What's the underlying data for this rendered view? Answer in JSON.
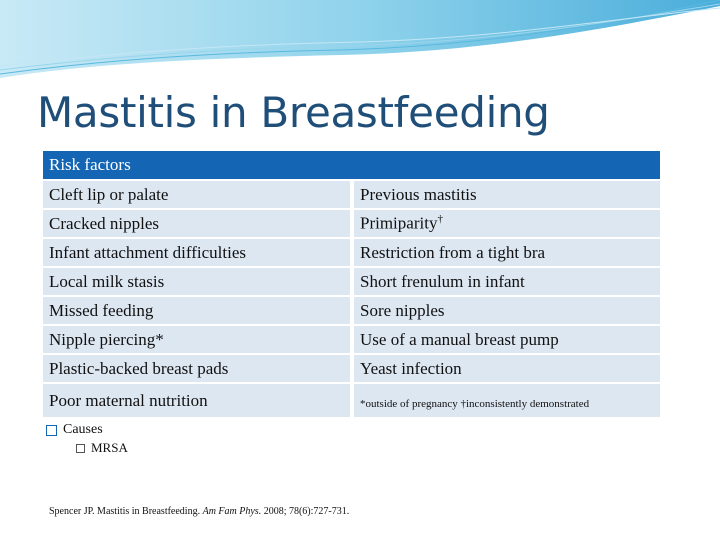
{
  "slide": {
    "title": "Mastitis in Breastfeeding"
  },
  "table": {
    "header": "Risk factors",
    "rows": [
      {
        "left": "Cleft lip or palate",
        "right": "Previous mastitis"
      },
      {
        "left": "Cracked nipples",
        "right": "Primiparity",
        "right_sup": "†"
      },
      {
        "left": "Infant attachment difficulties",
        "right": "Restriction from a tight bra"
      },
      {
        "left": "Local milk stasis",
        "right": "Short frenulum in infant"
      },
      {
        "left": "Missed feeding",
        "right": "Sore nipples"
      },
      {
        "left": "Nipple piercing*",
        "right": "Use of a manual breast pump"
      },
      {
        "left": "Plastic-backed breast pads",
        "right": "Yeast infection"
      },
      {
        "left": "Poor maternal nutrition",
        "right": "*outside of pregnancy †inconsistently demonstrated"
      }
    ]
  },
  "bullets": {
    "level1": "Causes",
    "level2": "MRSA"
  },
  "citation": {
    "prefix": "Spencer JP. Mastitis in Breastfeeding.",
    "journal": "Am Fam Phys.",
    "suffix": "2008; 78(6):727-731."
  },
  "colors": {
    "title": "#1f4e79",
    "header_bg": "#1565b5",
    "row_bg": "#dde7f2",
    "wave": "#2aa6d8"
  }
}
